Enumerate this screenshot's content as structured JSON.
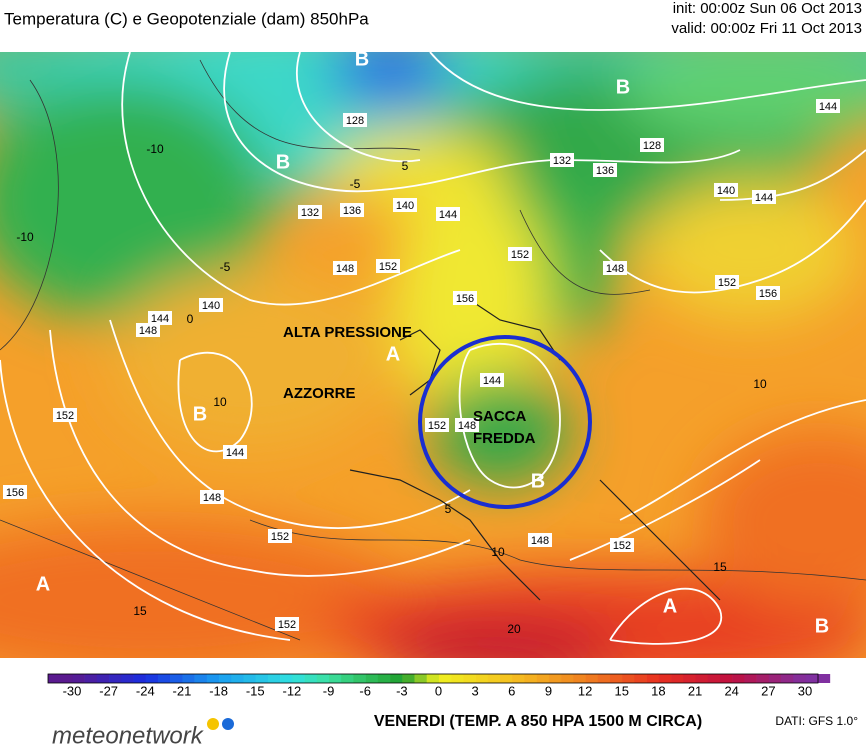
{
  "header": {
    "title": "Temperatura (C) e Geopotenziale (dam) 850hPa",
    "init": "init: 00:00z Sun 06 Oct 2013",
    "valid": "valid: 00:00z Fri 11 Oct 2013"
  },
  "map": {
    "annotations": [
      "ALTA PRESSIONE",
      "AZZORRE",
      "SACCA",
      "FREDDA"
    ],
    "pressure_centers": [
      "B",
      "B",
      "B",
      "A",
      "B",
      "B",
      "A",
      "A",
      "B"
    ],
    "height_labels": [
      128,
      132,
      136,
      140,
      144,
      148,
      152,
      156,
      132,
      136,
      128,
      144,
      140,
      144,
      148,
      152,
      152,
      156,
      140,
      144,
      148,
      152,
      156,
      144,
      148,
      152,
      152,
      152,
      148,
      144,
      148,
      152
    ],
    "temperature_labels": [
      -10,
      -5,
      -10,
      5,
      0,
      -5,
      10,
      10,
      15,
      15,
      20,
      10,
      5
    ]
  },
  "colorbar": {
    "ticks": [
      -30,
      -27,
      -24,
      -21,
      -18,
      -15,
      -12,
      -9,
      -6,
      -3,
      0,
      3,
      6,
      9,
      12,
      15,
      18,
      21,
      24,
      27,
      30
    ]
  },
  "footer": {
    "caption": "VENERDI (TEMP. A 850 HPA 1500 M CIRCA)",
    "source": "DATI: GFS 1.0°",
    "brand": "meteonetwork"
  }
}
